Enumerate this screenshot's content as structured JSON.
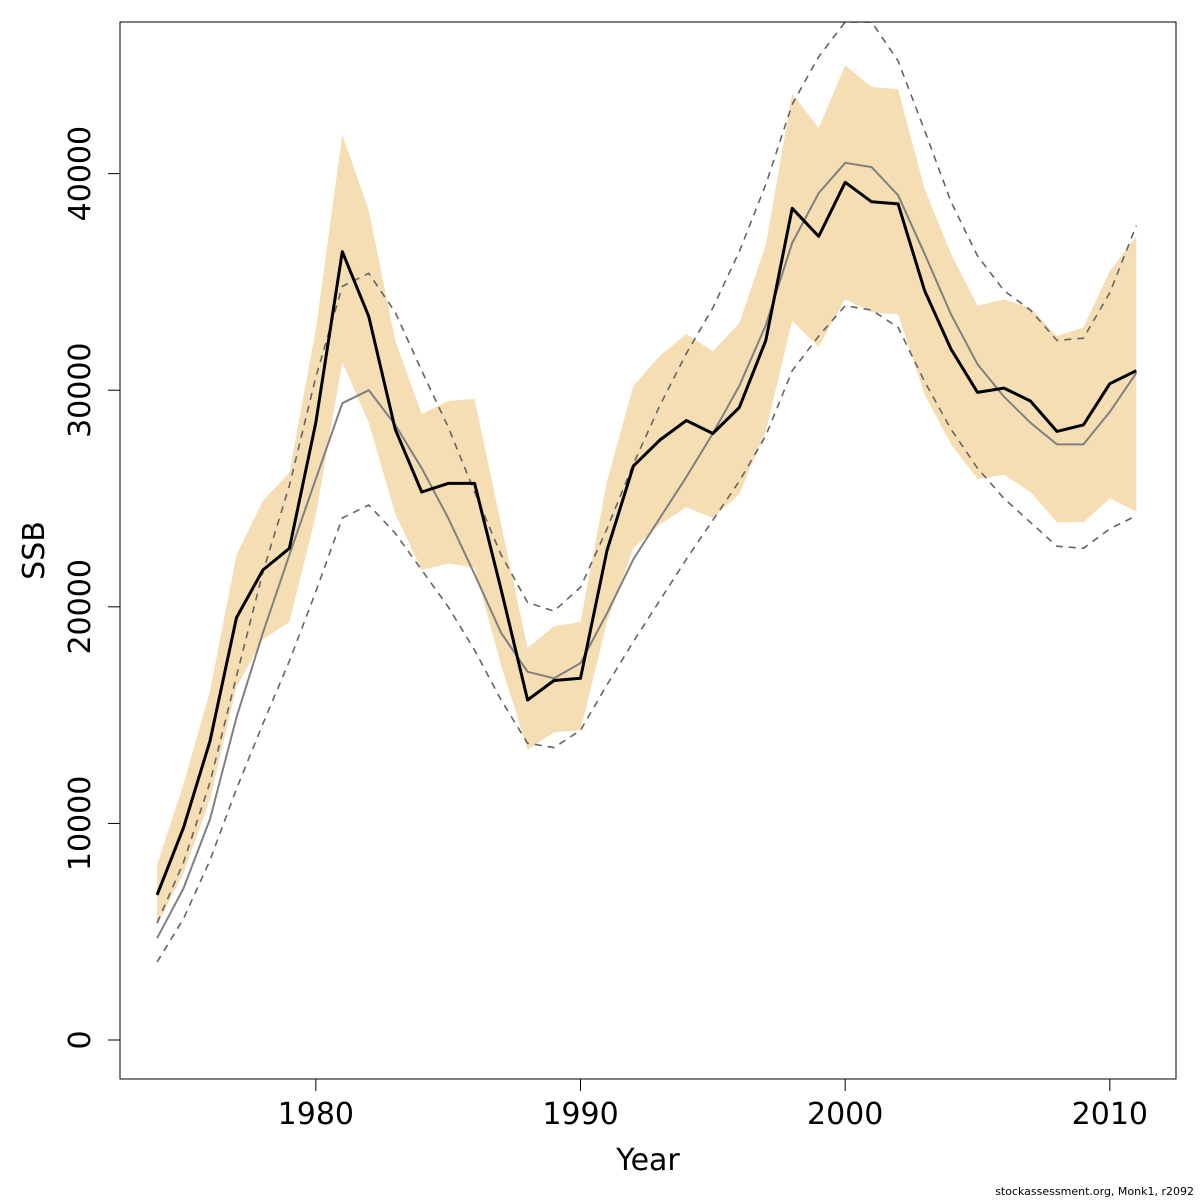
{
  "chart_data": {
    "type": "line",
    "xlabel": "Year",
    "ylabel": "SSB",
    "xlim": [
      1972.6,
      2012.5
    ],
    "ylim": [
      -1800,
      47000
    ],
    "x_ticks": [
      1980,
      1990,
      2000,
      2010
    ],
    "y_ticks": [
      0,
      10000,
      20000,
      30000,
      40000
    ],
    "grid": false,
    "colors": {
      "band": "#f5deb3",
      "main_line": "#000000",
      "grey_line": "#808080",
      "dashed_line": "#646464"
    },
    "x": [
      1974,
      1975,
      1976,
      1977,
      1978,
      1979,
      1980,
      1981,
      1982,
      1983,
      1984,
      1985,
      1986,
      1987,
      1988,
      1989,
      1990,
      1991,
      1992,
      1993,
      1994,
      1995,
      1996,
      1997,
      1998,
      1999,
      2000,
      2001,
      2002,
      2003,
      2004,
      2005,
      2006,
      2007,
      2008,
      2009,
      2010,
      2011
    ],
    "band_upper": [
      8100,
      11800,
      16100,
      22400,
      24900,
      26200,
      32800,
      41800,
      38300,
      32300,
      28900,
      29500,
      29600,
      23800,
      18100,
      19100,
      19300,
      25800,
      30200,
      31600,
      32600,
      31800,
      33100,
      36700,
      43700,
      42100,
      45000,
      44000,
      43900,
      39300,
      36300,
      33900,
      34200,
      33800,
      32500,
      32900,
      35500,
      37100
    ],
    "band_lower": [
      5300,
      7700,
      11100,
      16300,
      18500,
      19300,
      24200,
      31300,
      28500,
      24300,
      21700,
      22000,
      21800,
      17300,
      13400,
      14200,
      14300,
      19300,
      22700,
      23800,
      24600,
      24100,
      25200,
      28100,
      33200,
      32000,
      34200,
      33600,
      33500,
      29800,
      27500,
      25900,
      26100,
      25300,
      23900,
      23900,
      25000,
      24400
    ],
    "series": [
      {
        "values": [
          6700,
          9800,
          13800,
          19500,
          21700,
          22700,
          28500,
          36400,
          33400,
          28200,
          25300,
          25700,
          25700,
          20800,
          15700,
          16600,
          16700,
          22600,
          26500,
          27700,
          28600,
          28000,
          29200,
          32300,
          38400,
          37100,
          39600,
          38700,
          38600,
          34600,
          31900,
          29900,
          30100,
          29500,
          28100,
          28400,
          30300,
          30900
        ]
      },
      {
        "values": [
          4700,
          7000,
          10200,
          14900,
          18800,
          22400,
          25900,
          29400,
          30000,
          28400,
          26400,
          24100,
          21500,
          18800,
          17000,
          16700,
          17400,
          19700,
          22200,
          24100,
          26000,
          28000,
          30200,
          33000,
          36800,
          39100,
          40500,
          40300,
          39000,
          36300,
          33500,
          31200,
          29700,
          28500,
          27500,
          27500,
          29000,
          30800
        ]
      },
      {
        "values": [
          3600,
          5600,
          8300,
          11600,
          14600,
          17500,
          20700,
          24100,
          24700,
          23400,
          21700,
          20000,
          18000,
          15700,
          13700,
          13500,
          14300,
          16400,
          18400,
          20300,
          22200,
          24000,
          25800,
          27900,
          30900,
          32500,
          33900,
          33700,
          32900,
          30400,
          28200,
          26400,
          25000,
          23900,
          22800,
          22700,
          23600,
          24200
        ]
      },
      {
        "values": [
          5400,
          8200,
          11900,
          16800,
          21600,
          25600,
          30600,
          34800,
          35400,
          33600,
          30900,
          28300,
          25300,
          22400,
          20200,
          19800,
          20900,
          23600,
          26600,
          29300,
          31700,
          33800,
          36400,
          39500,
          43200,
          45400,
          47000,
          47000,
          45200,
          42000,
          38700,
          36200,
          34600,
          33700,
          32300,
          32400,
          34500,
          37600
        ]
      }
    ],
    "annotation": "stockassessment.org, Monk1, r2092"
  }
}
